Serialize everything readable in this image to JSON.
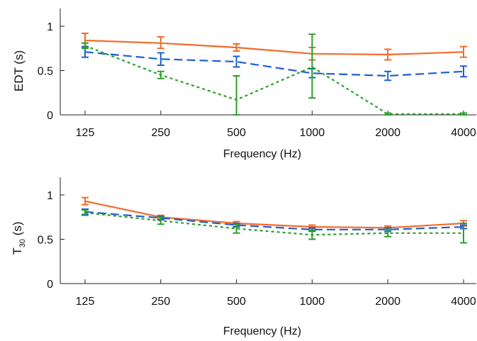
{
  "chart_data": [
    {
      "type": "line",
      "title": "",
      "xlabel": "Frequency (Hz)",
      "ylabel": "EDT (s)",
      "x_scale": "log",
      "categories": [
        "125",
        "250",
        "500",
        "1000",
        "2000",
        "4000"
      ],
      "x": [
        125,
        250,
        500,
        1000,
        2000,
        4000
      ],
      "ylim": [
        0,
        1.2
      ],
      "yticks": [
        "0",
        "0.5",
        "1"
      ],
      "ytick_values": [
        0,
        0.5,
        1
      ],
      "grid": false,
      "series": [
        {
          "color": "#f26b2a",
          "dash": "solid",
          "values": [
            0.84,
            0.81,
            0.76,
            0.69,
            0.68,
            0.71
          ],
          "err_low": [
            0.76,
            0.75,
            0.72,
            0.62,
            0.62,
            0.65
          ],
          "err_high": [
            0.92,
            0.88,
            0.8,
            0.76,
            0.74,
            0.77
          ]
        },
        {
          "color": "#1f5fd4",
          "dash": "long-dash",
          "values": [
            0.71,
            0.63,
            0.6,
            0.47,
            0.44,
            0.49
          ],
          "err_low": [
            0.65,
            0.56,
            0.54,
            0.42,
            0.39,
            0.43
          ],
          "err_high": [
            0.77,
            0.7,
            0.66,
            0.52,
            0.49,
            0.55
          ]
        },
        {
          "color": "#2aa02a",
          "dash": "dotted",
          "values": [
            0.78,
            0.45,
            0.17,
            0.54,
            0.01,
            0.01
          ],
          "err_low": [
            0.75,
            0.41,
            0.0,
            0.19,
            0.0,
            0.0
          ],
          "err_high": [
            0.81,
            0.49,
            0.44,
            0.91,
            0.02,
            0.02
          ]
        }
      ]
    },
    {
      "type": "line",
      "title": "",
      "xlabel": "Frequency (Hz)",
      "ylabel_main": "T",
      "ylabel_sub": "30",
      "ylabel_tail": " (s)",
      "x_scale": "log",
      "categories": [
        "125",
        "250",
        "500",
        "1000",
        "2000",
        "4000"
      ],
      "x": [
        125,
        250,
        500,
        1000,
        2000,
        4000
      ],
      "ylim": [
        0,
        1.2
      ],
      "yticks": [
        "0",
        "0.5",
        "1"
      ],
      "ytick_values": [
        0,
        0.5,
        1
      ],
      "grid": false,
      "series": [
        {
          "color": "#f26b2a",
          "dash": "solid",
          "values": [
            0.93,
            0.75,
            0.68,
            0.64,
            0.63,
            0.68
          ],
          "err_low": [
            0.89,
            0.73,
            0.66,
            0.62,
            0.61,
            0.65
          ],
          "err_high": [
            0.97,
            0.77,
            0.7,
            0.66,
            0.65,
            0.71
          ]
        },
        {
          "color": "#1f5fd4",
          "dash": "long-dash",
          "values": [
            0.81,
            0.74,
            0.66,
            0.61,
            0.61,
            0.64
          ],
          "err_low": [
            0.78,
            0.72,
            0.64,
            0.59,
            0.59,
            0.62
          ],
          "err_high": [
            0.84,
            0.76,
            0.68,
            0.63,
            0.63,
            0.66
          ]
        },
        {
          "color": "#2aa02a",
          "dash": "dotted",
          "values": [
            0.8,
            0.71,
            0.62,
            0.55,
            0.57,
            0.57
          ],
          "err_low": [
            0.77,
            0.67,
            0.57,
            0.5,
            0.53,
            0.46
          ],
          "err_high": [
            0.83,
            0.75,
            0.67,
            0.6,
            0.61,
            0.68
          ]
        }
      ]
    }
  ]
}
